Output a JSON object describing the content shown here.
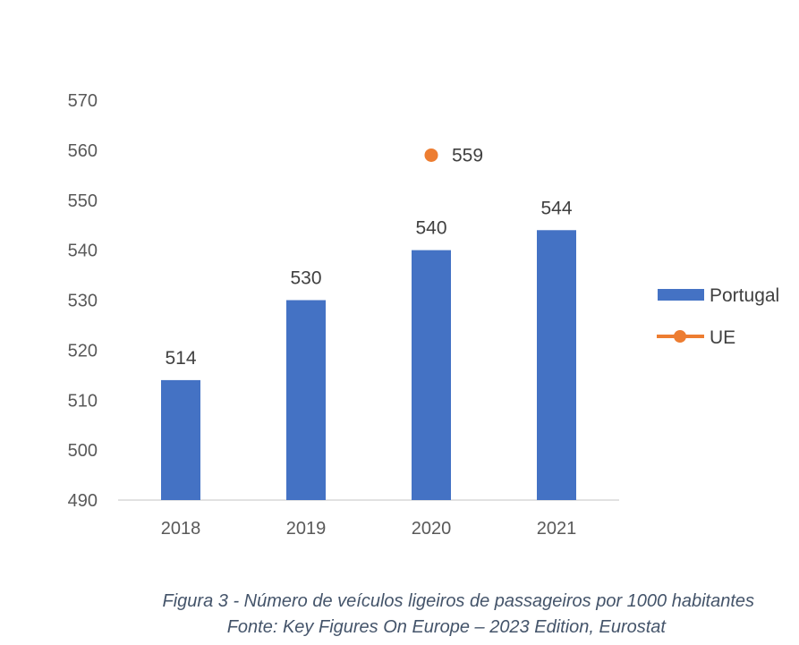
{
  "chart_data": {
    "type": "bar",
    "categories": [
      "2018",
      "2019",
      "2020",
      "2021"
    ],
    "series": [
      {
        "name": "Portugal",
        "kind": "bar",
        "color": "#4472c4",
        "values": [
          514,
          530,
          540,
          544
        ]
      },
      {
        "name": "UE",
        "kind": "line-marker",
        "color": "#ed7d31",
        "values": [
          null,
          null,
          559,
          null
        ]
      }
    ],
    "ylim": [
      490,
      570
    ],
    "yticks": [
      490,
      500,
      510,
      520,
      530,
      540,
      550,
      560,
      570
    ],
    "grid": false,
    "legend_position": "right"
  },
  "caption": {
    "line1": "Figura 3 - Número de veículos ligeiros de passageiros por 1000 habitantes",
    "line2": "Fonte: Key Figures On Europe – 2023 Edition, Eurostat"
  }
}
